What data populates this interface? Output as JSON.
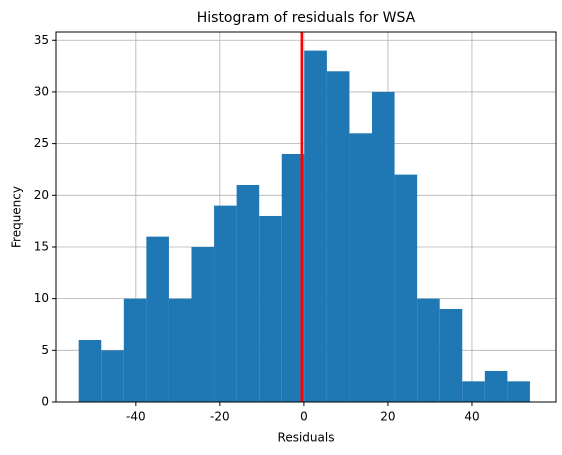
{
  "chart_data": {
    "type": "histogram",
    "title": "Histogram of residuals for WSA",
    "x_label": "Residuals",
    "y_label": "Frequency",
    "bins": [
      -53.6,
      -48.23,
      -42.86,
      -37.49,
      -32.12,
      -26.75,
      -21.38,
      -16.01,
      -10.64,
      -5.27,
      0.1,
      5.47,
      10.84,
      16.21,
      21.58,
      26.95,
      32.32,
      37.69,
      43.06,
      48.43,
      53.8
    ],
    "values": [
      6,
      5,
      10,
      16,
      10,
      15,
      19,
      21,
      18,
      24,
      34,
      32,
      26,
      30,
      22,
      10,
      9,
      2,
      3,
      2
    ],
    "color": "#1f77b4",
    "vline": {
      "x": -0.5,
      "color": "#ff0000"
    },
    "xlim": [
      -59,
      60
    ],
    "xticks": [
      -40,
      -20,
      0,
      20,
      40
    ],
    "ylim": [
      0,
      35.8
    ],
    "yticks": [
      0,
      5,
      10,
      15,
      20,
      25,
      30,
      35
    ],
    "grid": true
  }
}
